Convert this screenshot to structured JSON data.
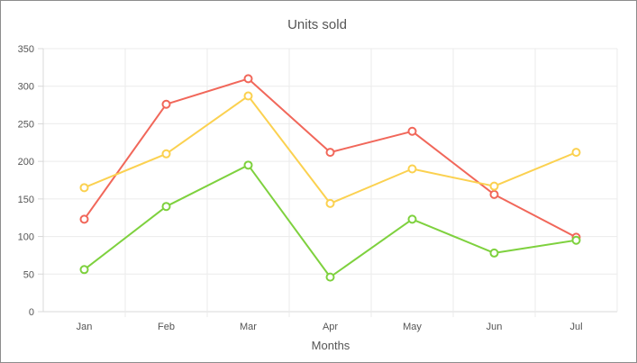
{
  "chart_data": {
    "type": "line",
    "title": "Units sold",
    "xlabel": "Months",
    "ylabel": "",
    "categories": [
      "Jan",
      "Feb",
      "Mar",
      "Apr",
      "May",
      "Jun",
      "Jul"
    ],
    "ylim": [
      0,
      350
    ],
    "yticks": [
      "0",
      "50",
      "100",
      "150",
      "200",
      "250",
      "300",
      "350"
    ],
    "grid": true,
    "legend": "none",
    "series": [
      {
        "color": "#f1675a",
        "values": [
          123,
          276,
          310,
          212,
          240,
          156,
          99
        ]
      },
      {
        "color": "#fbd150",
        "values": [
          165,
          210,
          287,
          144,
          190,
          167,
          212
        ]
      },
      {
        "color": "#7ed13e",
        "values": [
          56,
          140,
          195,
          46,
          123,
          78,
          95
        ]
      }
    ]
  }
}
